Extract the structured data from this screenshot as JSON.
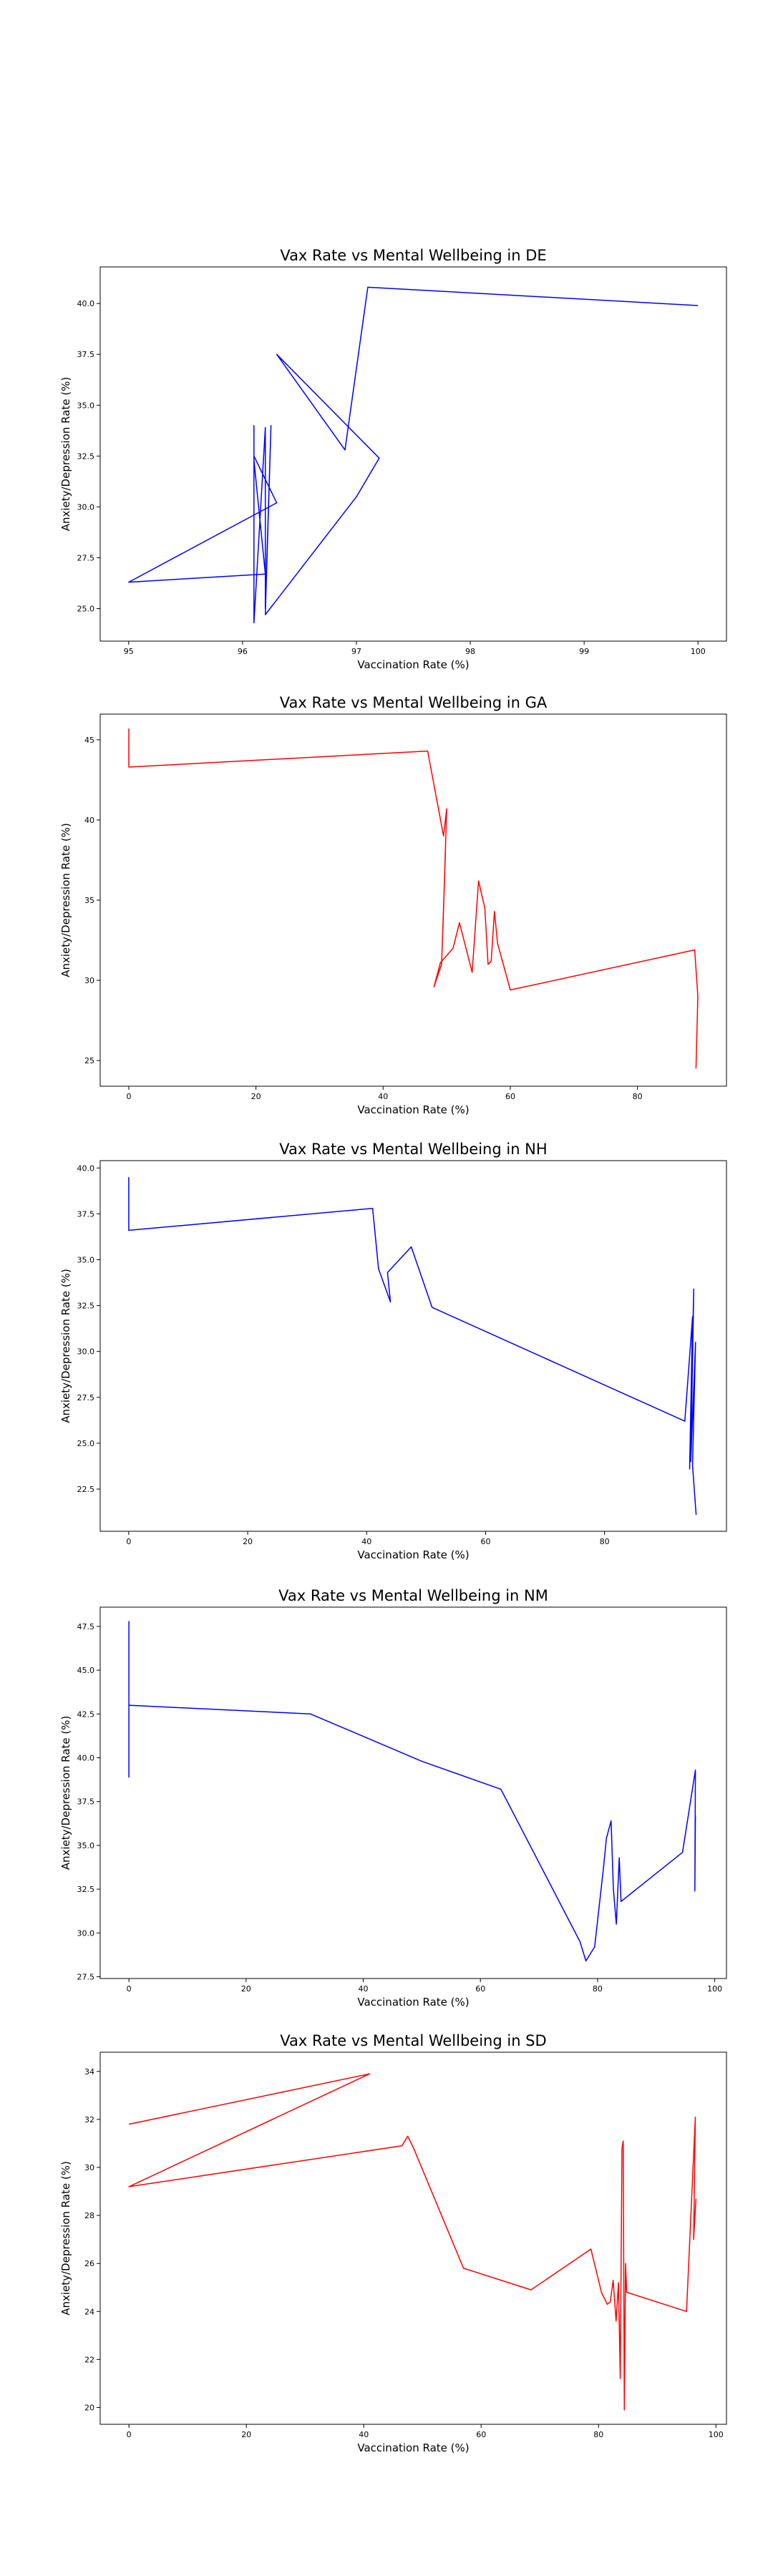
{
  "chart_data": [
    {
      "type": "line",
      "title": "Vax Rate vs Mental Wellbeing in DE",
      "xlabel": "Vaccination Rate (%)",
      "ylabel": "Anxiety/Depression Rate (%)",
      "xlim": [
        94.75,
        100.25
      ],
      "ylim": [
        23.4,
        41.8
      ],
      "xticks": [
        95,
        96,
        97,
        98,
        99,
        100
      ],
      "yticks": [
        25.0,
        27.5,
        30.0,
        32.5,
        35.0,
        37.5,
        40.0
      ],
      "xtick_labels": [
        "95",
        "96",
        "97",
        "98",
        "99",
        "100"
      ],
      "ytick_labels": [
        "25.0",
        "27.5",
        "30.0",
        "32.5",
        "35.0",
        "37.5",
        "40.0"
      ],
      "color": "#0000ff",
      "grid": false,
      "series": [
        {
          "x": [
            100.0,
            97.1,
            96.9,
            96.3,
            97.2,
            97.0,
            96.2,
            96.25,
            96.2,
            96.2,
            96.1,
            96.1,
            96.1,
            96.1,
            96.3,
            95.0,
            96.2,
            96.1,
            96.1
          ],
          "y": [
            39.9,
            40.8,
            32.8,
            37.5,
            32.4,
            30.5,
            24.7,
            34.0,
            25.0,
            33.9,
            24.3,
            34.0,
            24.5,
            32.5,
            30.2,
            26.3,
            26.7,
            32.3,
            26.6
          ]
        }
      ]
    },
    {
      "type": "line",
      "title": "Vax Rate vs Mental Wellbeing in GA",
      "xlabel": "Vaccination Rate (%)",
      "ylabel": "Anxiety/Depression Rate (%)",
      "xlim": [
        -4.5,
        94.0
      ],
      "ylim": [
        23.4,
        46.6
      ],
      "xticks": [
        0,
        20,
        40,
        60,
        80
      ],
      "yticks": [
        25,
        30,
        35,
        40,
        45
      ],
      "xtick_labels": [
        "0",
        "20",
        "40",
        "60",
        "80"
      ],
      "ytick_labels": [
        "25",
        "30",
        "35",
        "40",
        "45"
      ],
      "color": "#ff0000",
      "grid": false,
      "series": [
        {
          "x": [
            0,
            0,
            47.0,
            49.5,
            50.0,
            49.4,
            49.8,
            49.2,
            48.0,
            49.0,
            51.0,
            52.0,
            54.0,
            55.0,
            56.0,
            56.5,
            57.0,
            57.5,
            58.0,
            60.0,
            89.0,
            89.5,
            89.2
          ],
          "y": [
            45.7,
            43.3,
            44.3,
            39.0,
            40.7,
            33.2,
            38.1,
            31.0,
            29.6,
            31.1,
            32.0,
            33.6,
            30.5,
            36.2,
            34.5,
            31.0,
            31.2,
            34.3,
            32.3,
            29.4,
            31.9,
            29.0,
            24.5
          ]
        }
      ]
    },
    {
      "type": "line",
      "title": "Vax Rate vs Mental Wellbeing in NH",
      "xlabel": "Vaccination Rate (%)",
      "ylabel": "Anxiety/Depression Rate (%)",
      "xlim": [
        -4.8,
        100.5
      ],
      "ylim": [
        20.2,
        40.4
      ],
      "xticks": [
        0,
        20,
        40,
        60,
        80
      ],
      "yticks": [
        22.5,
        25.0,
        27.5,
        30.0,
        32.5,
        35.0,
        37.5,
        40.0
      ],
      "xtick_labels": [
        "0",
        "20",
        "40",
        "60",
        "80"
      ],
      "ytick_labels": [
        "22.5",
        "25.0",
        "27.5",
        "30.0",
        "32.5",
        "35.0",
        "37.5",
        "40.0"
      ],
      "color": "#0000ff",
      "grid": false,
      "series": [
        {
          "x": [
            0,
            0,
            41.0,
            42.0,
            44.0,
            43.5,
            47.5,
            51.0,
            93.5,
            94.8,
            94.3,
            95.0,
            94.5,
            95.3,
            94.8,
            95.4
          ],
          "y": [
            39.5,
            36.6,
            37.8,
            34.5,
            32.7,
            34.3,
            35.7,
            32.4,
            26.2,
            31.9,
            23.6,
            33.4,
            24.0,
            30.5,
            23.8,
            21.1
          ]
        }
      ]
    },
    {
      "type": "line",
      "title": "Vax Rate vs Mental Wellbeing in NM",
      "xlabel": "Vaccination Rate (%)",
      "ylabel": "Anxiety/Depression Rate (%)",
      "xlim": [
        -4.9,
        102.0
      ],
      "ylim": [
        27.4,
        48.6
      ],
      "xticks": [
        0,
        20,
        40,
        60,
        80,
        100
      ],
      "yticks": [
        27.5,
        30.0,
        32.5,
        35.0,
        37.5,
        40.0,
        42.5,
        45.0,
        47.5
      ],
      "xtick_labels": [
        "0",
        "20",
        "40",
        "60",
        "80",
        "100"
      ],
      "ytick_labels": [
        "27.5",
        "30.0",
        "32.5",
        "35.0",
        "37.5",
        "40.0",
        "42.5",
        "45.0",
        "47.5"
      ],
      "color": "#0000ff",
      "grid": false,
      "series": [
        {
          "x": [
            0,
            0,
            0,
            31.0,
            50.0,
            63.5,
            77.0,
            78.0,
            79.5,
            81.0,
            81.5,
            82.3,
            82.7,
            83.2,
            83.7,
            84.0,
            94.5,
            96.7,
            96.6,
            96.7
          ],
          "y": [
            47.8,
            38.9,
            43.0,
            42.5,
            39.8,
            38.2,
            29.5,
            28.4,
            29.2,
            33.7,
            35.4,
            36.4,
            32.5,
            30.5,
            34.3,
            31.8,
            34.6,
            39.3,
            32.4,
            36.7
          ]
        }
      ]
    },
    {
      "type": "line",
      "title": "Vax Rate vs Mental Wellbeing in SD",
      "xlabel": "Vaccination Rate (%)",
      "ylabel": "Anxiety/Depression Rate (%)",
      "xlim": [
        -4.9,
        101.8
      ],
      "ylim": [
        19.3,
        34.8
      ],
      "xticks": [
        0,
        20,
        40,
        60,
        80,
        100
      ],
      "yticks": [
        20,
        22,
        24,
        26,
        28,
        30,
        32,
        34
      ],
      "xtick_labels": [
        "0",
        "20",
        "40",
        "60",
        "80",
        "100"
      ],
      "ytick_labels": [
        "20",
        "22",
        "24",
        "26",
        "28",
        "30",
        "32",
        "34"
      ],
      "color": "#ff0000",
      "grid": false,
      "series": [
        {
          "x": [
            0,
            41.0,
            0,
            46.5,
            47.5,
            48.5,
            57.0,
            68.5,
            78.7,
            80.5,
            81.5,
            82.0,
            82.5,
            83.0,
            83.4,
            83.7,
            84.0,
            84.2,
            84.4,
            84.6,
            84.8,
            95.0,
            96.5,
            96.2,
            96.6
          ],
          "y": [
            31.8,
            33.9,
            29.2,
            30.9,
            31.3,
            30.8,
            25.8,
            24.9,
            26.6,
            24.8,
            24.3,
            24.4,
            25.3,
            23.6,
            25.2,
            21.2,
            30.8,
            31.1,
            19.9,
            26.0,
            24.8,
            24.0,
            32.1,
            27.0,
            28.7
          ]
        }
      ]
    }
  ]
}
